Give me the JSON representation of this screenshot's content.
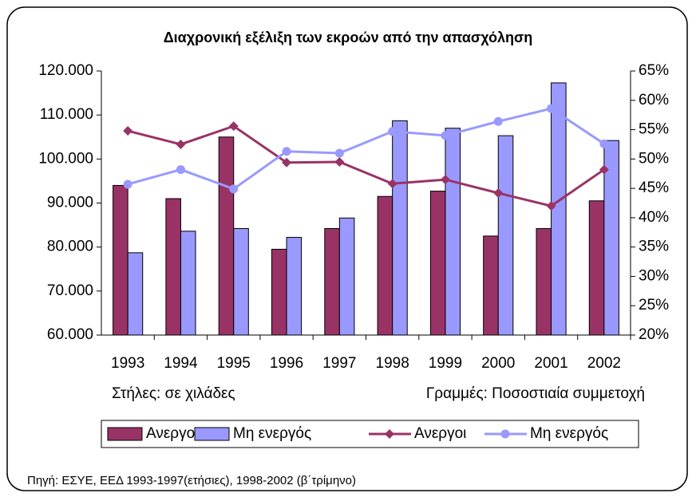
{
  "chart_data": {
    "type": "bar",
    "title": "Διαχρονική εξέλιξη των εκροών από την απασχόληση",
    "categories": [
      "1993",
      "1994",
      "1995",
      "1996",
      "1997",
      "1998",
      "1999",
      "2000",
      "2001",
      "2002"
    ],
    "series": [
      {
        "name": "Ανεργοι",
        "type": "bar",
        "color": "#993366",
        "values": [
          94000,
          91000,
          105000,
          79500,
          84200,
          91500,
          92700,
          82500,
          84200,
          90500
        ]
      },
      {
        "name": "Μη ενεργός",
        "type": "bar",
        "color": "#9999ff",
        "values": [
          78700,
          83600,
          84200,
          82200,
          86600,
          108700,
          107000,
          105300,
          117300,
          104200
        ]
      },
      {
        "name": "Ανεργοι",
        "type": "line",
        "axis": "y2",
        "color": "#993366",
        "values": [
          54.8,
          52.5,
          55.6,
          49.4,
          49.5,
          45.8,
          46.5,
          44.2,
          42.0,
          48.2
        ]
      },
      {
        "name": "Μη ενεργός",
        "type": "line",
        "axis": "y2",
        "color": "#9999ff",
        "values": [
          45.7,
          48.2,
          44.9,
          51.3,
          51.0,
          54.7,
          54.0,
          56.4,
          58.6,
          52.6
        ]
      }
    ],
    "ylim": [
      60000,
      120000
    ],
    "yticks": [
      {
        "value": 60000,
        "label": "60.000"
      },
      {
        "value": 70000,
        "label": "70.000"
      },
      {
        "value": 80000,
        "label": "80.000"
      },
      {
        "value": 90000,
        "label": "90.000"
      },
      {
        "value": 100000,
        "label": "100.000"
      },
      {
        "value": 110000,
        "label": "110.000"
      },
      {
        "value": 120000,
        "label": "120.000"
      }
    ],
    "y2lim": [
      20,
      65
    ],
    "y2ticks": [
      {
        "value": 20,
        "label": "20%"
      },
      {
        "value": 25,
        "label": "25%"
      },
      {
        "value": 30,
        "label": "30%"
      },
      {
        "value": 35,
        "label": "35%"
      },
      {
        "value": 40,
        "label": "40%"
      },
      {
        "value": 45,
        "label": "45%"
      },
      {
        "value": 50,
        "label": "50%"
      },
      {
        "value": 55,
        "label": "55%"
      },
      {
        "value": 60,
        "label": "60%"
      },
      {
        "value": 65,
        "label": "65%"
      }
    ],
    "annotations": [
      "Στήλες: σε χιλάδες",
      "Γραμμές: Ποσοστιαία συμμετοχή",
      "Πηγή: ΕΣΥΕ, ΕΕΔ 1993-1997(ετήσιες), 1998-2002 (β΄τρίμηνο)"
    ],
    "grid": false
  }
}
